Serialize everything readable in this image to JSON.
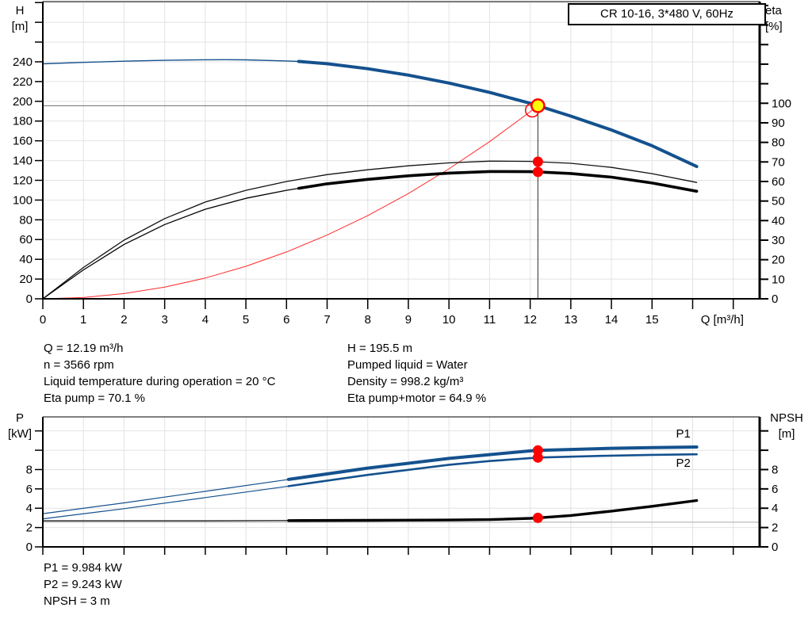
{
  "title_box": "CR 10-16, 3*480 V, 60Hz",
  "annotations": {
    "left": [
      "Q = 12.19 m³/h",
      "n = 3566 rpm",
      "Liquid temperature during operation = 20 °C",
      "Eta pump = 70.1 %"
    ],
    "right": [
      "H = 195.5 m",
      "Pumped liquid = Water",
      "Density = 998.2 kg/m³",
      "Eta pump+motor = 64.9 %"
    ]
  },
  "footer": [
    "P1 = 9.984 kW",
    "P2 = 9.243 kW",
    "NPSH = 3 m"
  ],
  "colors": {
    "curve_blue": "#14518e",
    "system_red": "#ff2a2a",
    "marker_red": "#ff0000",
    "duty_yellow": "#ffff00",
    "grid": "#e2e2e2",
    "crosshair": "#6e6e6e"
  },
  "chart_data": [
    {
      "type": "line",
      "title": "CR 10-16, 3*480 V, 60Hz",
      "xlabel": "Q [m³/h]",
      "ylabel_left": "H",
      "ylabel_left_unit": "[m]",
      "ylabel_right": "eta",
      "ylabel_right_unit": "[%]",
      "xlim": [
        0,
        17.65
      ],
      "x_tick_step": 1,
      "x_tick_labels": [
        0,
        1,
        2,
        3,
        4,
        5,
        6,
        7,
        8,
        9,
        10,
        11,
        12,
        13,
        14,
        15
      ],
      "ylim_left": [
        0,
        301
      ],
      "left_tick_step": 20,
      "left_tick_labels": [
        0,
        20,
        40,
        60,
        80,
        100,
        120,
        140,
        160,
        180,
        200,
        220,
        240
      ],
      "ylim_right": [
        0,
        152
      ],
      "right_tick_step": 10,
      "right_tick_labels": [
        0,
        10,
        20,
        30,
        40,
        50,
        60,
        70,
        80,
        90,
        100
      ],
      "grid": true,
      "series": [
        {
          "name": "system-curve",
          "axis": "left",
          "color": "#ff2a2a",
          "width": 1,
          "x": [
            0,
            1,
            2,
            3,
            4,
            5,
            6,
            7,
            8,
            9,
            10,
            11,
            12,
            12.19
          ],
          "y": [
            0,
            1.3,
            5.3,
            11.8,
            21,
            32.9,
            47.4,
            64.5,
            84.2,
            106.6,
            131.6,
            159.2,
            189.4,
            195.5
          ]
        },
        {
          "name": "eta-pump",
          "axis": "right",
          "color": "#111111",
          "width": 1.3,
          "x": [
            0,
            1,
            2,
            3,
            4,
            5,
            6,
            7,
            8,
            9,
            10,
            11,
            12,
            12.19,
            13,
            14,
            15,
            16.1
          ],
          "y": [
            0,
            16,
            30,
            41,
            49.5,
            55.5,
            60,
            63.5,
            66,
            68,
            69.5,
            70.4,
            70.3,
            70.1,
            69.3,
            67.2,
            64,
            59.5
          ]
        },
        {
          "name": "eta-pump-motor",
          "axis": "right",
          "color": "#000000",
          "width": 1.3,
          "width_bold": 3.6,
          "bold_from": 6.3,
          "x": [
            0,
            1,
            2,
            3,
            4,
            5,
            6,
            7,
            8,
            9,
            10,
            11,
            12,
            12.19,
            13,
            14,
            15,
            16.1
          ],
          "y": [
            0,
            14.8,
            27.8,
            38,
            45.8,
            51.4,
            55.5,
            58.8,
            61.1,
            62.9,
            64.3,
            65.1,
            65,
            64.9,
            64.1,
            62.2,
            59.2,
            55
          ]
        },
        {
          "name": "head-curve",
          "axis": "left",
          "color": "#14518e",
          "width": 1.4,
          "width_bold": 4,
          "bold_from": 6.3,
          "x": [
            0,
            1,
            2,
            3,
            4,
            4.5,
            5,
            6,
            6.3,
            7,
            8,
            9,
            10,
            11,
            12,
            12.19,
            13,
            14,
            15,
            16.1
          ],
          "y": [
            238,
            239.4,
            240.6,
            241.5,
            242.1,
            242.2,
            242,
            240.9,
            240.4,
            238.1,
            233,
            226.5,
            218.5,
            209,
            198,
            195.5,
            185,
            171,
            155,
            134
          ]
        }
      ],
      "crosshair": {
        "x": 12.19,
        "y": 195.5
      },
      "markers": [
        {
          "kind": "ring",
          "axis": "left",
          "x": 12.05,
          "y": 191
        },
        {
          "kind": "duty",
          "axis": "left",
          "x": 12.19,
          "y": 195.5
        },
        {
          "kind": "dot",
          "axis": "right",
          "x": 12.19,
          "y": 70.1
        },
        {
          "kind": "dot",
          "axis": "right",
          "x": 12.19,
          "y": 64.9
        }
      ]
    },
    {
      "type": "line",
      "title": "",
      "xlabel": "",
      "ylabel_left": "P",
      "ylabel_left_unit": "[kW]",
      "ylabel_right": "NPSH",
      "ylabel_right_unit": "[m]",
      "xlim": [
        0,
        17.65
      ],
      "x_tick_step": 1,
      "x_tick_labels": [],
      "ylim_left": [
        0,
        13.45
      ],
      "left_tick_step": 2,
      "left_tick_labels": [
        0,
        2,
        4,
        6,
        8
      ],
      "ylim_right": [
        0,
        13.45
      ],
      "right_tick_step": 2,
      "right_tick_labels": [
        0,
        2,
        4,
        6,
        8
      ],
      "grid": true,
      "series": [
        {
          "name": "npsh-reference",
          "axis": "right",
          "color": "#aaaaaa",
          "width": 1,
          "x": [
            0,
            17.65
          ],
          "y": [
            2.55,
            2.55
          ]
        },
        {
          "name": "P2",
          "axis": "left",
          "color": "#14518e",
          "width": 1.2,
          "width_bold": 2.6,
          "bold_from": 6.05,
          "label": "P2",
          "label_q": 15.59,
          "label_v": 8.28,
          "x": [
            0,
            2,
            4,
            6,
            8,
            10,
            11,
            12,
            12.19,
            13,
            14,
            15,
            16.1
          ],
          "y": [
            2.9,
            3.95,
            5.1,
            6.25,
            7.45,
            8.5,
            8.88,
            9.18,
            9.24,
            9.33,
            9.44,
            9.52,
            9.58
          ]
        },
        {
          "name": "P1",
          "axis": "left",
          "color": "#14518e",
          "width": 1.2,
          "width_bold": 4,
          "bold_from": 6.05,
          "label": "P1",
          "label_q": 15.59,
          "label_v": 11.32,
          "x": [
            0,
            2,
            4,
            6,
            8,
            10,
            11,
            12,
            12.19,
            13,
            14,
            15,
            16.1
          ],
          "y": [
            3.44,
            4.55,
            5.75,
            6.95,
            8.15,
            9.15,
            9.55,
            9.93,
            9.98,
            10.08,
            10.2,
            10.28,
            10.33
          ]
        },
        {
          "name": "NPSH",
          "axis": "right",
          "color": "#000000",
          "width": 1.2,
          "width_bold": 3.4,
          "bold_from": 6.05,
          "x": [
            0,
            2,
            4,
            6,
            8,
            10,
            11,
            12,
            12.19,
            13,
            14,
            15,
            16.1
          ],
          "y": [
            2.7,
            2.7,
            2.7,
            2.72,
            2.75,
            2.78,
            2.82,
            2.95,
            3,
            3.25,
            3.7,
            4.2,
            4.8
          ]
        }
      ],
      "markers": [
        {
          "kind": "dot",
          "axis": "left",
          "x": 12.19,
          "y": 9.98
        },
        {
          "kind": "dot",
          "axis": "left",
          "x": 12.19,
          "y": 9.24
        },
        {
          "kind": "dot",
          "axis": "right",
          "x": 12.19,
          "y": 3
        }
      ]
    }
  ]
}
